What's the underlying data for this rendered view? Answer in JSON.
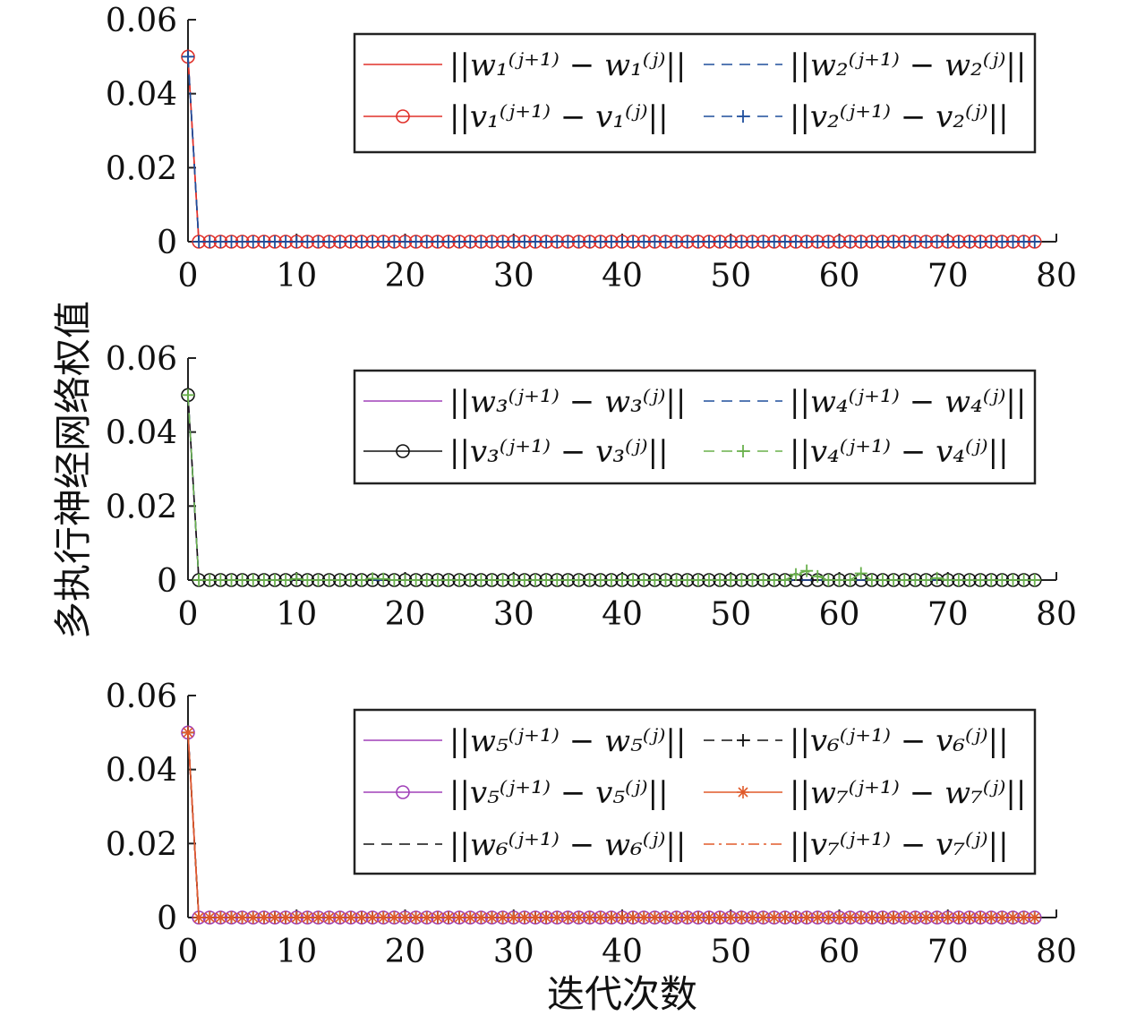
{
  "figure": {
    "ylabel": "多执行神经网络权值",
    "xlabel": "迭代次数"
  },
  "chart_data": [
    {
      "type": "line",
      "x": {
        "start": 0,
        "end": 78,
        "step": 1
      },
      "xlim": [
        0,
        80
      ],
      "ylim": [
        0,
        0.06
      ],
      "xticks": [
        "0",
        "10",
        "20",
        "30",
        "40",
        "50",
        "60",
        "70",
        "80"
      ],
      "yticks": [
        "0",
        "0.02",
        "0.04",
        "0.06"
      ],
      "grid": false,
      "legend_position": "top-right",
      "legend_columns": 2,
      "series": [
        {
          "name": "||w₁⁽ʲ⁺¹⁾ − w₁⁽ʲ⁾||",
          "color": "#e0302a",
          "line": "solid",
          "marker": "none",
          "start_value": 0.05,
          "steady_value": 0
        },
        {
          "name": "||v₁⁽ʲ⁺¹⁾ − v₁⁽ʲ⁾||",
          "color": "#e0302a",
          "line": "solid",
          "marker": "circle",
          "start_value": 0.05,
          "steady_value": 0
        },
        {
          "name": "||w₂⁽ʲ⁺¹⁾ − w₂⁽ʲ⁾||",
          "color": "#1f4e9c",
          "line": "dashed",
          "marker": "none",
          "start_value": 0.05,
          "steady_value": 0
        },
        {
          "name": "||v₂⁽ʲ⁺¹⁾ − v₂⁽ʲ⁾||",
          "color": "#1f4e9c",
          "line": "dashed",
          "marker": "plus",
          "start_value": 0.05,
          "steady_value": 0
        }
      ]
    },
    {
      "type": "line",
      "x": {
        "start": 0,
        "end": 78,
        "step": 1
      },
      "xlim": [
        0,
        80
      ],
      "ylim": [
        0,
        0.06
      ],
      "xticks": [
        "0",
        "10",
        "20",
        "30",
        "40",
        "50",
        "60",
        "70",
        "80"
      ],
      "yticks": [
        "0",
        "0.02",
        "0.04",
        "0.06"
      ],
      "grid": false,
      "legend_position": "top-right",
      "legend_columns": 2,
      "series": [
        {
          "name": "||w₃⁽ʲ⁺¹⁾ − w₃⁽ʲ⁾||",
          "color": "#a040b8",
          "line": "solid",
          "marker": "none",
          "start_value": 0.05,
          "steady_value": 0
        },
        {
          "name": "||v₃⁽ʲ⁺¹⁾ − v₃⁽ʲ⁾||",
          "color": "#111111",
          "line": "solid",
          "marker": "circle",
          "start_value": 0.05,
          "steady_value": 0
        },
        {
          "name": "||w₄⁽ʲ⁺¹⁾ − w₄⁽ʲ⁾||",
          "color": "#1f4e9c",
          "line": "dashed",
          "marker": "none",
          "start_value": 0.05,
          "steady_value": 0
        },
        {
          "name": "||v₄⁽ʲ⁺¹⁾ − v₄⁽ʲ⁾||",
          "color": "#6ab04c",
          "line": "dashed",
          "marker": "plus",
          "start_value": 0.05,
          "steady_value": 0,
          "spikes": [
            {
              "x": 10,
              "y": 0.0003
            },
            {
              "x": 17,
              "y": 0.0004
            },
            {
              "x": 18,
              "y": 0.0003
            },
            {
              "x": 56,
              "y": 0.0015
            },
            {
              "x": 57,
              "y": 0.0025
            },
            {
              "x": 58,
              "y": 0.001
            },
            {
              "x": 62,
              "y": 0.0018
            },
            {
              "x": 69,
              "y": 0.0005
            }
          ]
        }
      ]
    },
    {
      "type": "line",
      "x": {
        "start": 0,
        "end": 78,
        "step": 1
      },
      "xlim": [
        0,
        80
      ],
      "ylim": [
        0,
        0.06
      ],
      "xticks": [
        "0",
        "10",
        "20",
        "30",
        "40",
        "50",
        "60",
        "70",
        "80"
      ],
      "yticks": [
        "0",
        "0.02",
        "0.04",
        "0.06"
      ],
      "grid": false,
      "legend_position": "top-right",
      "legend_columns": 2,
      "series": [
        {
          "name": "||w₅⁽ʲ⁺¹⁾ − w₅⁽ʲ⁾||",
          "color": "#a040b8",
          "line": "solid",
          "marker": "none",
          "start_value": 0.05,
          "steady_value": 0
        },
        {
          "name": "||v₅⁽ʲ⁺¹⁾ − v₅⁽ʲ⁾||",
          "color": "#a040b8",
          "line": "solid",
          "marker": "circle",
          "start_value": 0.05,
          "steady_value": 0
        },
        {
          "name": "||w₆⁽ʲ⁺¹⁾ − w₆⁽ʲ⁾||",
          "color": "#111111",
          "line": "dashed",
          "marker": "none",
          "start_value": 0.05,
          "steady_value": 0
        },
        {
          "name": "||v₆⁽ʲ⁺¹⁾ − v₆⁽ʲ⁾||",
          "color": "#111111",
          "line": "dashed",
          "marker": "plus",
          "start_value": 0.05,
          "steady_value": 0
        },
        {
          "name": "||w₇⁽ʲ⁺¹⁾ − w₇⁽ʲ⁾||",
          "color": "#e05a2a",
          "line": "solid",
          "marker": "star",
          "start_value": 0.05,
          "steady_value": 0
        },
        {
          "name": "||v₇⁽ʲ⁺¹⁾ − v₇⁽ʲ⁾||",
          "color": "#e05a2a",
          "line": "dashdot",
          "marker": "none",
          "start_value": 0.05,
          "steady_value": 0
        }
      ]
    }
  ]
}
